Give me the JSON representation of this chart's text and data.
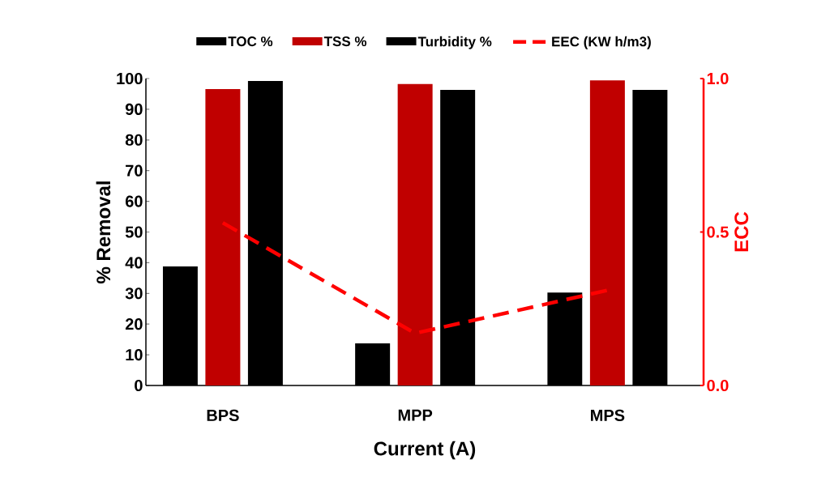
{
  "chart_data": {
    "type": "bar",
    "xlabel": "Current (A)",
    "ylabel": "% Removal",
    "y2label": "ECC",
    "categories": [
      "BPS",
      "MPP",
      "MPS"
    ],
    "series": [
      {
        "name": "TOC %",
        "color": "#000000",
        "values": [
          38.8,
          13.7,
          30.3
        ]
      },
      {
        "name": "TSS %",
        "color": "#c00000",
        "values": [
          96.6,
          98.2,
          99.4
        ]
      },
      {
        "name": "Turbidity %",
        "color": "#000000",
        "values": [
          99.2,
          96.3,
          96.3
        ]
      },
      {
        "name": "EEC (KW h/m3)",
        "type": "line",
        "axis": "y2",
        "color": "#ff0000",
        "line_style": "dashed",
        "values": [
          0.53,
          0.17,
          0.31
        ]
      }
    ],
    "ylim": [
      0,
      100
    ],
    "yticks": [
      0,
      10,
      20,
      30,
      40,
      50,
      60,
      70,
      80,
      90,
      100
    ],
    "y2lim": [
      0,
      1
    ],
    "y2ticks": [
      {
        "value": 0,
        "label": "0.0"
      },
      {
        "value": 0.5,
        "label": "0.5"
      },
      {
        "value": 1,
        "label": "1.0"
      }
    ],
    "legend": "top",
    "grid": false,
    "marker": "none"
  }
}
